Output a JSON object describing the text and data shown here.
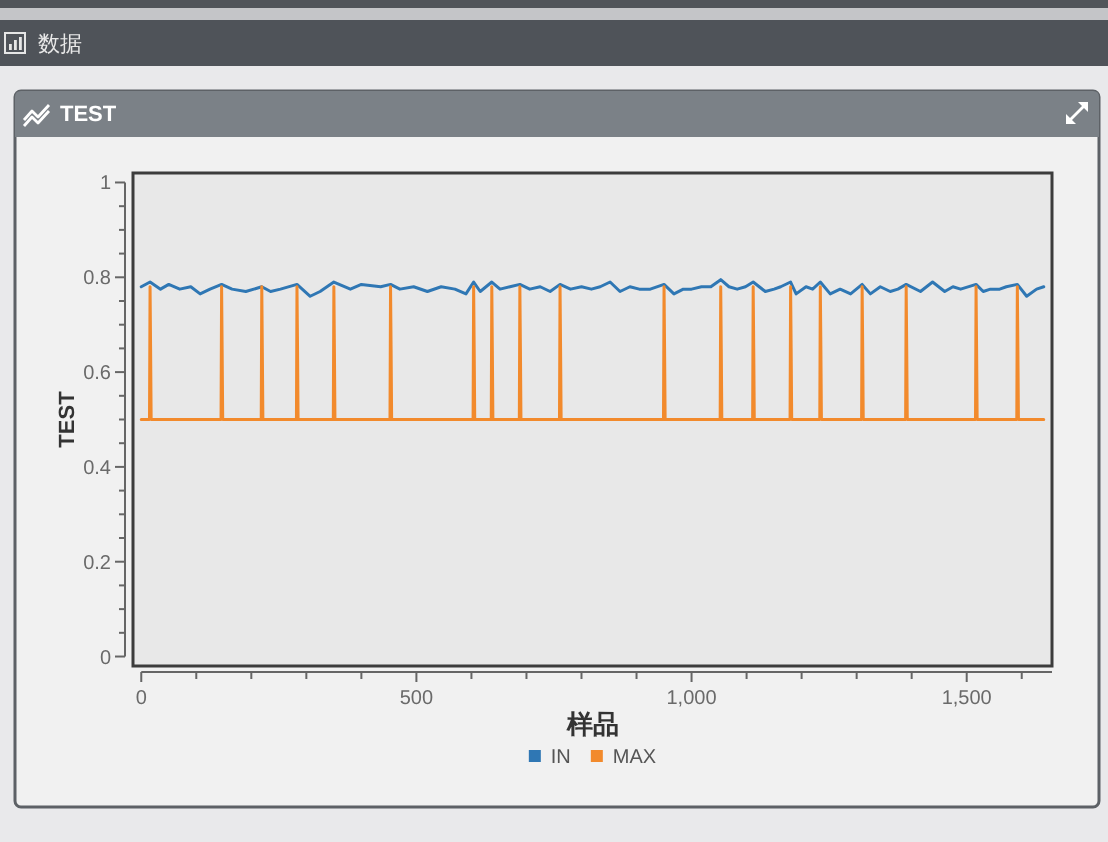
{
  "chart_data": {
    "type": "line",
    "title": "数据",
    "subtitle": "TEST",
    "xlabel": "样品",
    "ylabel": "TEST",
    "legend": "bottom",
    "xlim": [
      -15,
      1655
    ],
    "ylim": [
      -0.02,
      1.02
    ],
    "xticks": [
      0,
      {
        "value": 100,
        "label": null
      },
      {
        "value": 200,
        "label": null
      },
      {
        "value": 300,
        "label": null
      },
      {
        "value": 400,
        "label": null
      },
      500,
      {
        "value": 600,
        "label": null
      },
      {
        "value": 700,
        "label": null
      },
      {
        "value": 800,
        "label": null
      },
      {
        "value": 900,
        "label": null
      },
      {
        "value": 1000,
        "label": "1,000"
      },
      {
        "value": 1100,
        "label": null
      },
      {
        "value": 1200,
        "label": null
      },
      {
        "value": 1300,
        "label": null
      },
      {
        "value": 1400,
        "label": null
      },
      {
        "value": 1500,
        "label": "1,500"
      },
      {
        "value": 1600,
        "label": null
      }
    ],
    "yticks": [
      0,
      {
        "value": 0.05,
        "label": null
      },
      {
        "value": 0.1,
        "label": null
      },
      {
        "value": 0.15,
        "label": null
      },
      0.2,
      {
        "value": 0.25,
        "label": null
      },
      {
        "value": 0.3,
        "label": null
      },
      {
        "value": 0.35,
        "label": null
      },
      0.4,
      {
        "value": 0.45,
        "label": null
      },
      {
        "value": 0.5,
        "label": null
      },
      {
        "value": 0.55,
        "label": null
      },
      0.6,
      {
        "value": 0.65,
        "label": null
      },
      {
        "value": 0.7,
        "label": null
      },
      {
        "value": 0.75,
        "label": null
      },
      0.8,
      {
        "value": 0.85,
        "label": null
      },
      {
        "value": 0.9,
        "label": null
      },
      {
        "value": 0.95,
        "label": null
      },
      1
    ],
    "series": [
      {
        "name": "IN",
        "color": "#2f77b4",
        "x": [
          0,
          16,
          35,
          50,
          70,
          90,
          107,
          125,
          146,
          165,
          190,
          219,
          235,
          253,
          283,
          307,
          325,
          350,
          380,
          400,
          435,
          453,
          470,
          495,
          520,
          545,
          570,
          590,
          604,
          616,
          637,
          652,
          670,
          688,
          706,
          725,
          743,
          761,
          780,
          800,
          818,
          834,
          852,
          870,
          888,
          905,
          925,
          950,
          968,
          985,
          1000,
          1018,
          1035,
          1053,
          1068,
          1083,
          1098,
          1112,
          1134,
          1150,
          1162,
          1180,
          1190,
          1208,
          1220,
          1234,
          1252,
          1270,
          1289,
          1310,
          1325,
          1343,
          1361,
          1375,
          1390,
          1416,
          1438,
          1460,
          1475,
          1489,
          1517,
          1530,
          1543,
          1560,
          1572,
          1592,
          1609,
          1627,
          1640
        ],
        "values": [
          0.78,
          0.79,
          0.775,
          0.785,
          0.775,
          0.78,
          0.765,
          0.775,
          0.785,
          0.775,
          0.77,
          0.78,
          0.77,
          0.775,
          0.785,
          0.76,
          0.77,
          0.79,
          0.775,
          0.785,
          0.78,
          0.785,
          0.775,
          0.78,
          0.77,
          0.78,
          0.775,
          0.765,
          0.79,
          0.77,
          0.79,
          0.775,
          0.78,
          0.785,
          0.775,
          0.78,
          0.77,
          0.785,
          0.775,
          0.78,
          0.775,
          0.78,
          0.79,
          0.77,
          0.78,
          0.775,
          0.775,
          0.785,
          0.765,
          0.775,
          0.775,
          0.78,
          0.78,
          0.795,
          0.78,
          0.775,
          0.78,
          0.79,
          0.77,
          0.775,
          0.78,
          0.79,
          0.765,
          0.78,
          0.775,
          0.79,
          0.765,
          0.775,
          0.765,
          0.785,
          0.765,
          0.78,
          0.77,
          0.775,
          0.785,
          0.77,
          0.79,
          0.77,
          0.78,
          0.775,
          0.785,
          0.77,
          0.775,
          0.775,
          0.78,
          0.785,
          0.76,
          0.775,
          0.78
        ]
      },
      {
        "name": "MAX",
        "color": "#f28a2c",
        "x": [
          0,
          15,
          16,
          17,
          18,
          145,
          146,
          147,
          148,
          218,
          219,
          220,
          221,
          282,
          283,
          284,
          285,
          349,
          350,
          351,
          352,
          452,
          453,
          454,
          455,
          603,
          604,
          605,
          606,
          636,
          637,
          638,
          639,
          687,
          688,
          689,
          690,
          760,
          761,
          762,
          763,
          949,
          950,
          951,
          952,
          1052,
          1053,
          1054,
          1055,
          1111,
          1112,
          1113,
          1114,
          1179,
          1180,
          1181,
          1182,
          1233,
          1234,
          1235,
          1236,
          1309,
          1310,
          1311,
          1312,
          1389,
          1390,
          1391,
          1392,
          1516,
          1517,
          1518,
          1519,
          1591,
          1592,
          1593,
          1594,
          1640
        ],
        "values": [
          0.5,
          0.5,
          0.78,
          0.65,
          0.5,
          0.5,
          0.78,
          0.65,
          0.5,
          0.5,
          0.78,
          0.65,
          0.5,
          0.5,
          0.78,
          0.65,
          0.5,
          0.5,
          0.78,
          0.65,
          0.5,
          0.5,
          0.78,
          0.65,
          0.5,
          0.5,
          0.78,
          0.65,
          0.5,
          0.5,
          0.78,
          0.65,
          0.5,
          0.5,
          0.78,
          0.65,
          0.5,
          0.5,
          0.78,
          0.65,
          0.5,
          0.5,
          0.78,
          0.65,
          0.5,
          0.5,
          0.78,
          0.65,
          0.5,
          0.5,
          0.78,
          0.65,
          0.5,
          0.5,
          0.78,
          0.65,
          0.5,
          0.5,
          0.78,
          0.65,
          0.5,
          0.5,
          0.78,
          0.65,
          0.5,
          0.5,
          0.78,
          0.65,
          0.5,
          0.5,
          0.78,
          0.65,
          0.5,
          0.5,
          0.78,
          0.65,
          0.5,
          0.5
        ]
      }
    ]
  }
}
